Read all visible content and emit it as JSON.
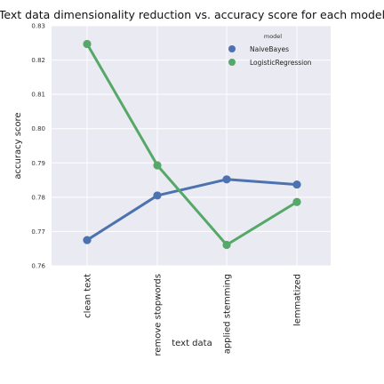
{
  "chart_data": {
    "type": "line",
    "title": "Text data dimensionality reduction vs. accuracy score for each model",
    "xlabel": "text data",
    "ylabel": "accuracy score",
    "categories": [
      "clean text",
      "remove stopwords",
      "applied stemming",
      "lemmatized"
    ],
    "ylim": [
      0.76,
      0.83
    ],
    "yticks": [
      "0.76",
      "0.77",
      "0.78",
      "0.79",
      "0.80",
      "0.81",
      "0.82",
      "0.83"
    ],
    "grid": true,
    "legend": {
      "title": "model",
      "placement": "top-right"
    },
    "series": [
      {
        "name": "NaiveBayes",
        "color": "#4c72b0",
        "values": [
          0.7675,
          0.7805,
          0.7852,
          0.7837
        ]
      },
      {
        "name": "LogisticRegression",
        "color": "#55a868",
        "values": [
          0.8247,
          0.7893,
          0.7661,
          0.7786
        ]
      }
    ]
  }
}
